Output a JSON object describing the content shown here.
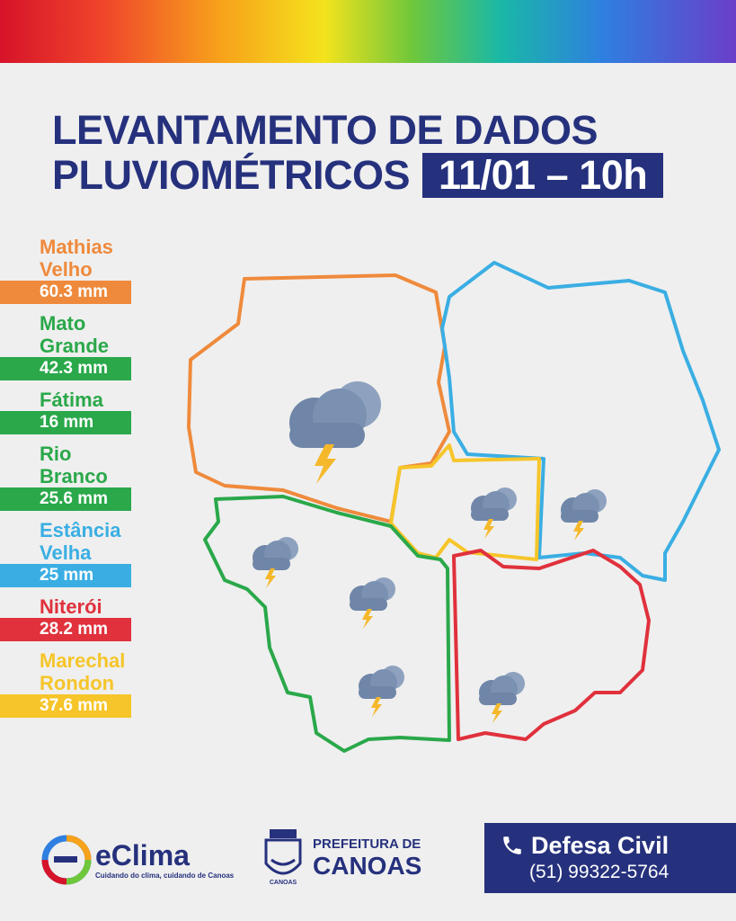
{
  "title": {
    "line1": "LEVANTAMENTO DE DADOS",
    "line2": "PLUVIOMÉTRICOS",
    "date": "11/01 – 10h"
  },
  "legend": [
    {
      "name": "Mathias\nVelho",
      "value": "60.3 mm",
      "color": "#ef8a3c"
    },
    {
      "name": "Mato\nGrande",
      "value": "42.3 mm",
      "color": "#2aa84a"
    },
    {
      "name": "Fátima",
      "value": "16 mm",
      "color": "#2aa84a"
    },
    {
      "name": "Rio Branco",
      "value": "25.6 mm",
      "color": "#2aa84a"
    },
    {
      "name": "Estância\nVelha",
      "value": "25 mm",
      "color": "#3aaee3"
    },
    {
      "name": "Niterói",
      "value": "28.2 mm",
      "color": "#e0313c"
    },
    {
      "name": "Marechal\nRondon",
      "value": "37.6 mm",
      "color": "#f6c52a"
    }
  ],
  "icons": [
    "storm-cloud-icon"
  ],
  "footer": {
    "eclima_name": "eClima",
    "eclima_tagline": "Cuidando do clima, cuidando de Canoas",
    "prefeitura_line1": "PREFEITURA DE",
    "prefeitura_line2": "CANOAS",
    "crest_text": "CANOAS",
    "defesa_title": "Defesa Civil",
    "defesa_phone": "(51) 99322-5764"
  }
}
